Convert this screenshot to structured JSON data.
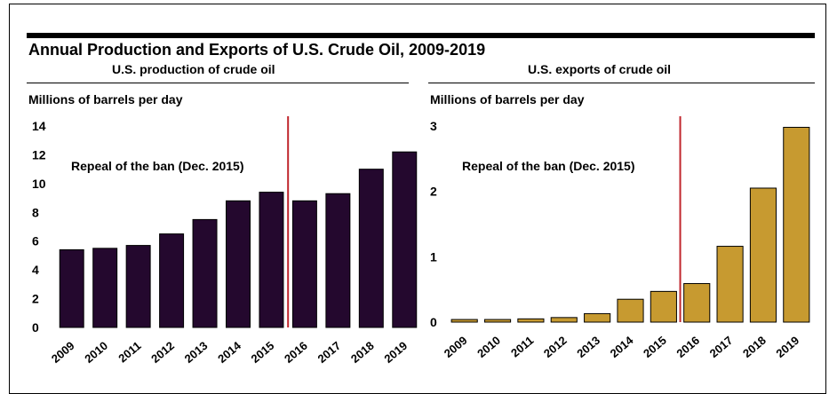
{
  "title": "Annual Production and Exports of U.S. Crude Oil, 2009-2019",
  "colors": {
    "production": "#24082e",
    "exports": "#c79a30",
    "repeal_line": "#c0262d"
  },
  "chart_data": [
    {
      "type": "bar",
      "title": "U.S. production of crude oil",
      "ylabel": "Millions of barrels per day",
      "categories": [
        "2009",
        "2010",
        "2011",
        "2012",
        "2013",
        "2014",
        "2015",
        "2016",
        "2017",
        "2018",
        "2019"
      ],
      "values": [
        5.4,
        5.5,
        5.7,
        6.5,
        7.5,
        8.8,
        9.4,
        8.8,
        9.3,
        11.0,
        12.2
      ],
      "ylim": [
        0,
        14
      ],
      "yticks": [
        0,
        2,
        4,
        6,
        8,
        10,
        12,
        14
      ],
      "annotation": {
        "text": "Repeal of the ban (Dec. 2015)",
        "x_between": [
          "2015",
          "2016"
        ]
      },
      "grid": false
    },
    {
      "type": "bar",
      "title": "U.S. exports of crude oil",
      "ylabel": "Millions of barrels per day",
      "categories": [
        "2009",
        "2010",
        "2011",
        "2012",
        "2013",
        "2014",
        "2015",
        "2016",
        "2017",
        "2018",
        "2019"
      ],
      "values": [
        0.04,
        0.04,
        0.05,
        0.07,
        0.13,
        0.35,
        0.47,
        0.59,
        1.16,
        2.05,
        2.98
      ],
      "ylim": [
        0,
        3
      ],
      "yticks": [
        0,
        1,
        2,
        3
      ],
      "annotation": {
        "text": "Repeal of the ban (Dec. 2015)",
        "x_between": [
          "2015",
          "2016"
        ]
      },
      "grid": false
    }
  ]
}
